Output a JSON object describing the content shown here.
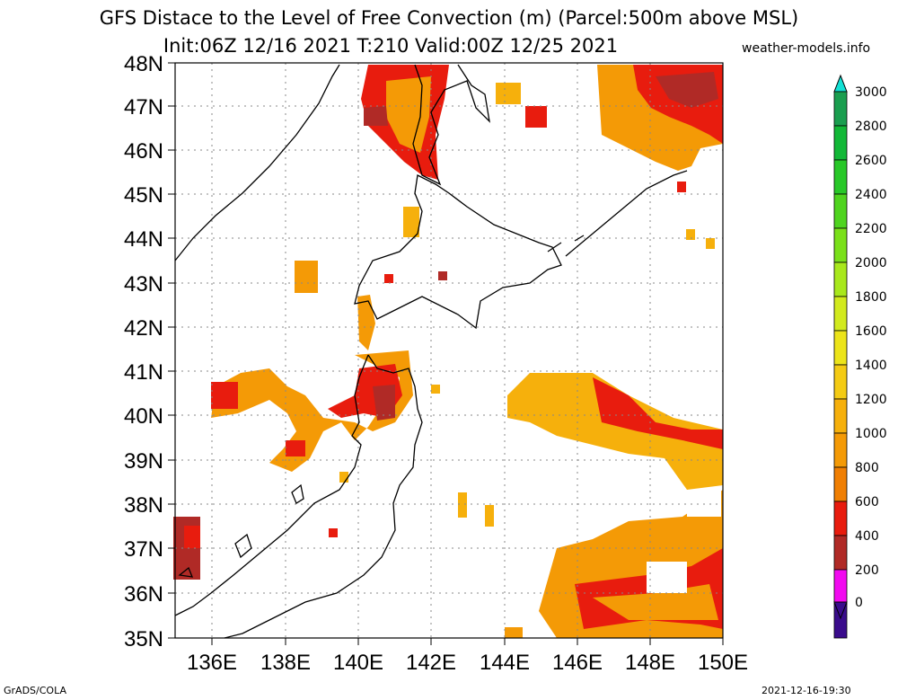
{
  "header": {
    "title_line1": "GFS Distace to the Level of Free Convection (m) (Parcel:500m above MSL)",
    "title_line2": "Init:06Z 12/16 2021 T:210 Valid:00Z 12/25 2021",
    "credit": "weather-models.info"
  },
  "footer": {
    "software": "GrADS/COLA",
    "timestamp": "2021-12-16-19:30"
  },
  "map": {
    "lat_labels": [
      "48N",
      "47N",
      "46N",
      "45N",
      "44N",
      "43N",
      "42N",
      "41N",
      "40N",
      "39N",
      "38N",
      "37N",
      "36N",
      "35N"
    ],
    "lon_labels": [
      "136E",
      "138E",
      "140E",
      "142E",
      "144E",
      "146E",
      "148E",
      "150E"
    ]
  },
  "colorbar": {
    "labels": [
      "3000",
      "2800",
      "2600",
      "2400",
      "2200",
      "2000",
      "1800",
      "1600",
      "1400",
      "1200",
      "1000",
      "800",
      "600",
      "400",
      "200",
      "0"
    ],
    "colors": [
      "#1a9e4f",
      "#12b837",
      "#28c828",
      "#4fd41f",
      "#7ae01a",
      "#a8e81c",
      "#d2ea1e",
      "#ece41a",
      "#f4cb14",
      "#f6b00c",
      "#f49a06",
      "#f07f03",
      "#e81c0e",
      "#b02a26",
      "#f20af0",
      "#3a0c8c"
    ],
    "top_color": "#12e0d4"
  }
}
